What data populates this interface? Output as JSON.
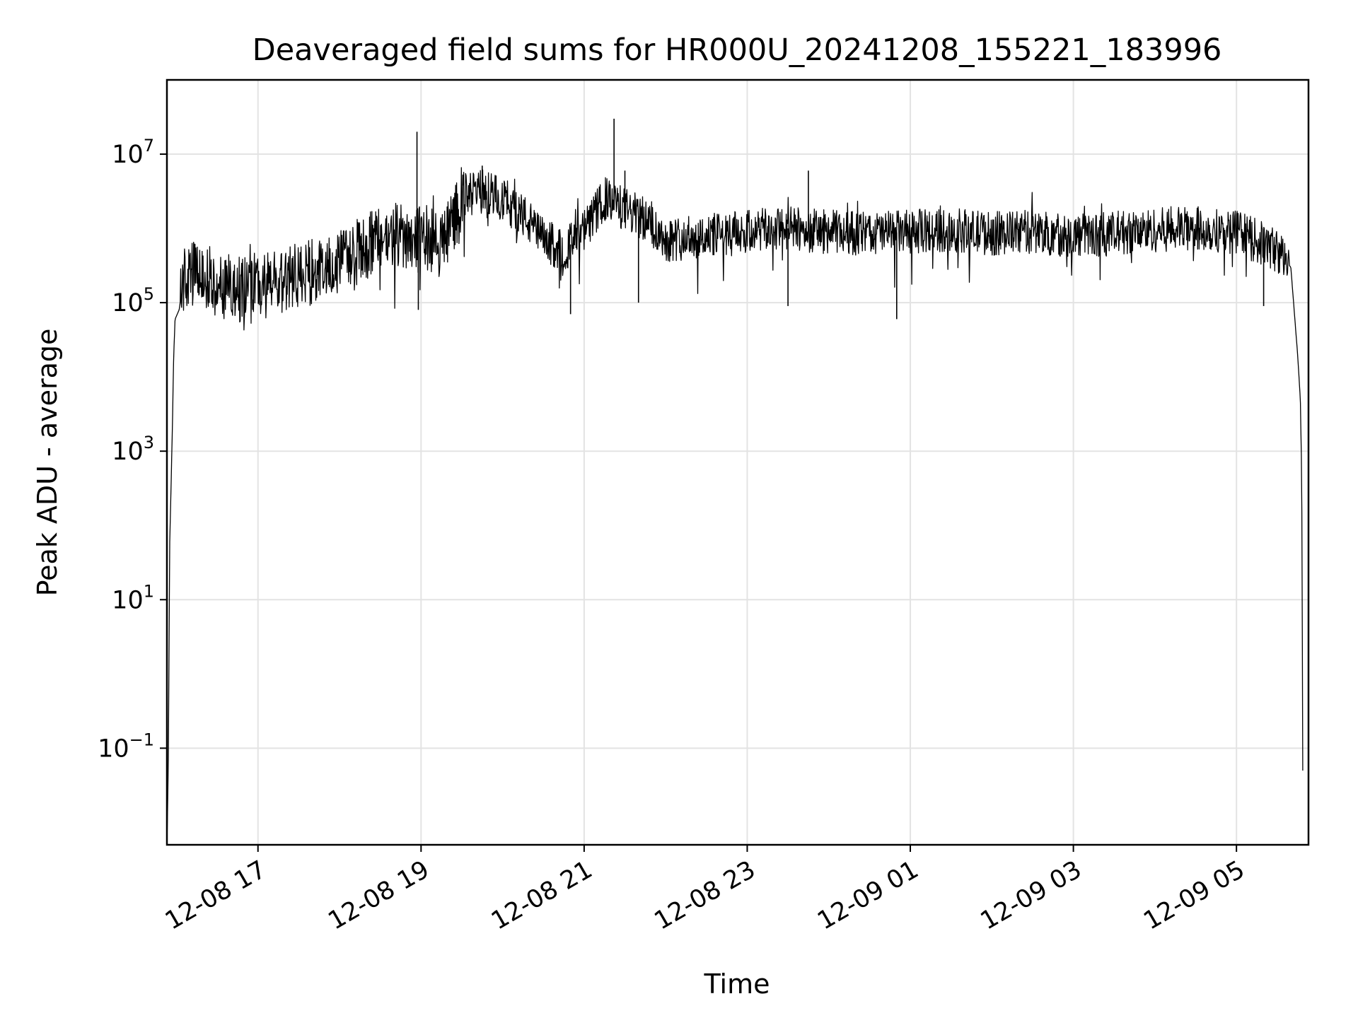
{
  "chart_data": {
    "type": "line",
    "title": "Deaveraged field sums for HR000U_20241208_155221_183996",
    "xlabel": "Time",
    "ylabel": "Peak ADU - average",
    "yscale": "log",
    "grid": true,
    "x_range": [
      "12-08 15:53",
      "12-09 05:53"
    ],
    "ylim": [
      0.005,
      100000000.0
    ],
    "x_ticks": [
      "12-08 17",
      "12-08 19",
      "12-08 21",
      "12-08 23",
      "12-09 01",
      "12-09 03",
      "12-09 05"
    ],
    "y_ticks": [
      {
        "value": 0.1,
        "base": "10",
        "exp": "−1"
      },
      {
        "value": 10,
        "base": "10",
        "exp": "1"
      },
      {
        "value": 1000,
        "base": "10",
        "exp": "3"
      },
      {
        "value": 100000,
        "base": "10",
        "exp": "5"
      },
      {
        "value": 10000000,
        "base": "10",
        "exp": "7"
      }
    ],
    "series": [
      {
        "color": "#000000",
        "points": [
          [
            "12-08 15:53",
            0.005
          ],
          [
            "12-08 15:54",
            0.05
          ],
          [
            "12-08 15:55",
            50
          ],
          [
            "12-08 15:57",
            2000
          ],
          [
            "12-08 15:58",
            20000
          ],
          [
            "12-08 15:59",
            60000
          ],
          [
            "12-08 16:02",
            80000
          ],
          [
            "12-08 16:05",
            200000
          ],
          [
            "12-08 16:15",
            250000
          ],
          [
            "12-08 16:30",
            180000
          ],
          [
            "12-08 16:45",
            150000
          ],
          [
            "12-08 17:00",
            170000
          ],
          [
            "12-08 17:15",
            180000
          ],
          [
            "12-08 17:30",
            230000
          ],
          [
            "12-08 17:45",
            280000
          ],
          [
            "12-08 18:00",
            350000
          ],
          [
            "12-08 18:15",
            500000
          ],
          [
            "12-08 18:30",
            700000
          ],
          [
            "12-08 18:45",
            800000
          ],
          [
            "12-08 19:00",
            800000
          ],
          [
            "12-08 19:15",
            600000
          ],
          [
            "12-08 19:30",
            2500000
          ],
          [
            "12-08 19:45",
            3200000
          ],
          [
            "12-08 20:00",
            2500000
          ],
          [
            "12-08 20:15",
            1500000
          ],
          [
            "12-08 20:30",
            700000
          ],
          [
            "12-08 20:45",
            500000
          ],
          [
            "12-08 21:00",
            900000
          ],
          [
            "12-08 21:15",
            2500000
          ],
          [
            "12-08 21:30",
            1800000
          ],
          [
            "12-08 21:45",
            1300000
          ],
          [
            "12-08 22:00",
            700000
          ],
          [
            "12-08 22:30",
            800000
          ],
          [
            "12-08 23:00",
            900000
          ],
          [
            "12-08 23:30",
            1000000
          ],
          [
            "12-09 00:00",
            900000
          ],
          [
            "12-09 00:30",
            850000
          ],
          [
            "12-09 01:00",
            900000
          ],
          [
            "12-09 01:30",
            950000
          ],
          [
            "12-09 02:00",
            850000
          ],
          [
            "12-09 02:30",
            900000
          ],
          [
            "12-09 03:00",
            800000
          ],
          [
            "12-09 03:30",
            850000
          ],
          [
            "12-09 04:00",
            950000
          ],
          [
            "12-09 04:30",
            1000000
          ],
          [
            "12-09 05:00",
            900000
          ],
          [
            "12-09 05:30",
            500000
          ],
          [
            "12-09 05:40",
            300000
          ],
          [
            "12-09 05:45",
            20000
          ],
          [
            "12-09 05:47",
            5000
          ],
          [
            "12-09 05:48",
            500
          ],
          [
            "12-09 05:49",
            0.005
          ]
        ],
        "spikes": [
          [
            "12-08 18:57",
            20000000
          ],
          [
            "12-08 21:22",
            30000000
          ],
          [
            "12-08 19:45",
            7000000
          ],
          [
            "12-08 21:30",
            6000000
          ],
          [
            "12-08 23:45",
            6000000
          ],
          [
            "12-08 18:58",
            80000
          ],
          [
            "12-08 20:50",
            70000
          ],
          [
            "12-08 21:40",
            100000
          ],
          [
            "12-08 23:30",
            90000
          ],
          [
            "12-09 00:50",
            60000
          ],
          [
            "12-09 05:20",
            90000
          ]
        ]
      }
    ]
  }
}
